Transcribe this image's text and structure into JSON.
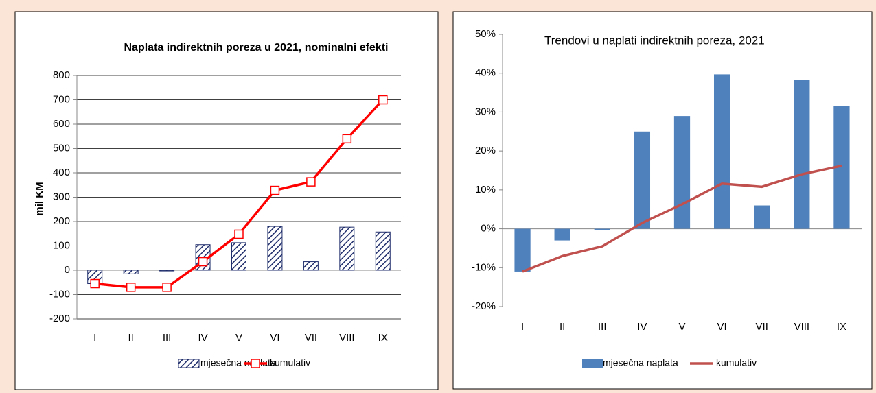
{
  "chart_data": [
    {
      "type": "combo",
      "title": "Naplata indirektnih poreza u 2021, nominalni  efekti",
      "ylabel": "mil KM",
      "categories": [
        "I",
        "II",
        "III",
        "IV",
        "V",
        "VI",
        "VII",
        "VIII",
        "IX"
      ],
      "series": [
        {
          "name": "mjesečna naplata",
          "type": "bar",
          "color": "#1f2d6b",
          "hatch": true,
          "values": [
            -55,
            -15,
            -3,
            105,
            113,
            180,
            35,
            177,
            157
          ]
        },
        {
          "name": "kumulativ",
          "type": "line",
          "color": "#ff0000",
          "marker": "square",
          "values": [
            -55,
            -70,
            -70,
            35,
            148,
            328,
            363,
            540,
            700
          ]
        }
      ],
      "ylim": [
        -200,
        800
      ],
      "yticks": [
        -200,
        -100,
        0,
        100,
        200,
        300,
        400,
        500,
        600,
        700,
        800
      ],
      "grid": true,
      "legend": "bottom"
    },
    {
      "type": "combo",
      "title": "Trendovi u naplati indirektnih poreza, 2021",
      "categories": [
        "I",
        "II",
        "III",
        "IV",
        "V",
        "VI",
        "VII",
        "VIII",
        "IX"
      ],
      "series": [
        {
          "name": "mjesečna naplata",
          "type": "bar",
          "color": "#4f81bd",
          "values": [
            -11,
            -3,
            -0.3,
            25,
            29,
            39.7,
            6,
            38.2,
            31.5
          ]
        },
        {
          "name": "kumulativ",
          "type": "line",
          "color": "#c0504d",
          "values": [
            -11,
            -7,
            -4.5,
            1.5,
            6.3,
            11.6,
            10.8,
            14,
            16.2
          ]
        }
      ],
      "ylim": [
        -20,
        50
      ],
      "yticks": [
        {
          "value": -20,
          "label": "-20%"
        },
        {
          "value": -10,
          "label": "-10%"
        },
        {
          "value": 0,
          "label": "0%"
        },
        {
          "value": 10,
          "label": "10%"
        },
        {
          "value": 20,
          "label": "20%"
        },
        {
          "value": 30,
          "label": "30%"
        },
        {
          "value": 40,
          "label": "40%"
        },
        {
          "value": 50,
          "label": "50%"
        }
      ],
      "grid": false,
      "legend": "bottom"
    }
  ]
}
